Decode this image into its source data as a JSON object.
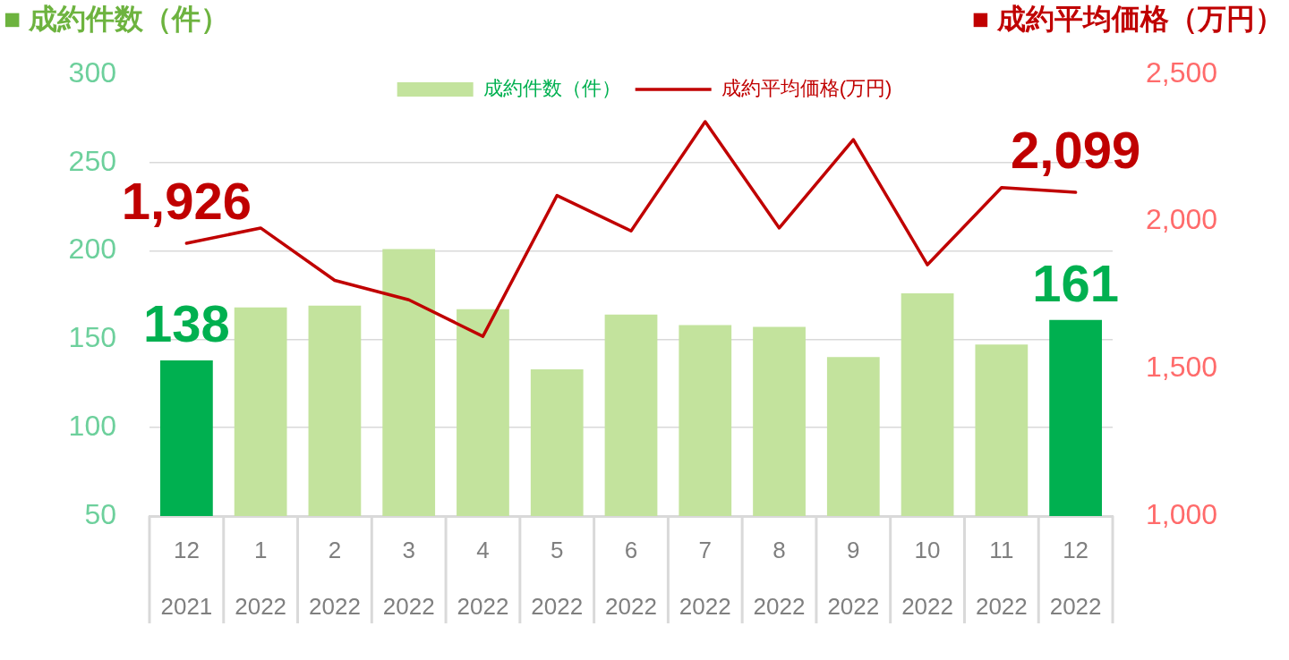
{
  "chart_data": {
    "type": "bar",
    "ylabel": "■ 成約件数（件）",
    "y2label": "■ 成約平均価格（万円）",
    "categories": [
      "12\n2021",
      "1\n2022",
      "2\n2022",
      "3\n2022",
      "4\n2022",
      "5\n2022",
      "6\n2022",
      "7\n2022",
      "8\n2022",
      "9\n2022",
      "10\n2022",
      "11\n2022",
      "12\n2022"
    ],
    "series": [
      {
        "name": "成約件数（件）",
        "color": "#c3e39d",
        "colors": [
          "#00b050",
          "#c3e39d",
          "#c3e39d",
          "#c3e39d",
          "#c3e39d",
          "#c3e39d",
          "#c3e39d",
          "#c3e39d",
          "#c3e39d",
          "#c3e39d",
          "#c3e39d",
          "#c3e39d",
          "#00b050"
        ],
        "values": [
          138,
          168,
          169,
          201,
          167,
          133,
          164,
          158,
          157,
          140,
          176,
          147,
          161
        ],
        "value_labels": [
          "138",
          null,
          null,
          null,
          null,
          null,
          null,
          null,
          null,
          null,
          null,
          null,
          "161"
        ]
      },
      {
        "name": "成約平均価格(万円)",
        "type": "line",
        "axis": "y2",
        "color": "#c00000",
        "values": [
          1926,
          1978,
          1800,
          1734,
          1610,
          2088,
          1968,
          2339,
          1978,
          2278,
          1853,
          2115,
          2099
        ],
        "value_labels": [
          "1,926",
          null,
          null,
          null,
          null,
          null,
          null,
          null,
          null,
          null,
          null,
          null,
          "2,099"
        ]
      }
    ],
    "ylim": [
      50,
      300
    ],
    "yticks": [
      50,
      100,
      150,
      200,
      250,
      300
    ],
    "y2lim": [
      1000,
      2500
    ],
    "y2ticks": [
      {
        "value": 1000,
        "label": "1,000"
      },
      {
        "value": 1500,
        "label": "1,500"
      },
      {
        "value": 2000,
        "label": "2,000"
      },
      {
        "value": 2500,
        "label": "2,500"
      }
    ],
    "grid": "y",
    "legend": "top",
    "marker": "none"
  }
}
